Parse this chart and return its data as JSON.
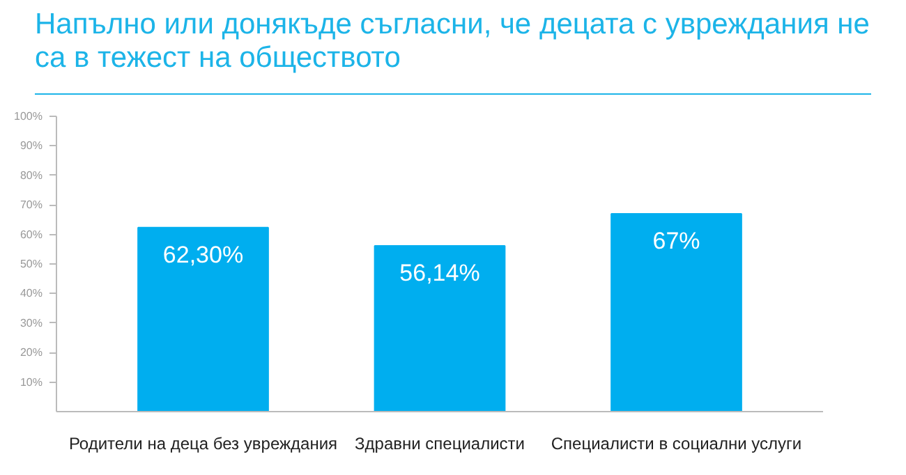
{
  "chart_data": {
    "type": "bar",
    "title": "Напълно или донякъде съгласни, че децата с увреждания не са в тежест на обществото",
    "categories": [
      "Родители на деца без увреждания",
      "Здравни специалисти",
      "Специалисти в социални услуги"
    ],
    "values": [
      62.3,
      56.14,
      67
    ],
    "value_labels": [
      "62,30%",
      "56,14%",
      "67%"
    ],
    "color": "#00aeef",
    "ylim": [
      0,
      100
    ],
    "yticks": [
      {
        "value": 10,
        "label": "10%"
      },
      {
        "value": 20,
        "label": "20%"
      },
      {
        "value": 30,
        "label": "30%"
      },
      {
        "value": 40,
        "label": "40%"
      },
      {
        "value": 50,
        "label": "50%"
      },
      {
        "value": 60,
        "label": "60%"
      },
      {
        "value": 70,
        "label": "70%"
      },
      {
        "value": 80,
        "label": "80%"
      },
      {
        "value": 90,
        "label": "90%"
      },
      {
        "value": 100,
        "label": "100%"
      }
    ],
    "grid": false
  }
}
